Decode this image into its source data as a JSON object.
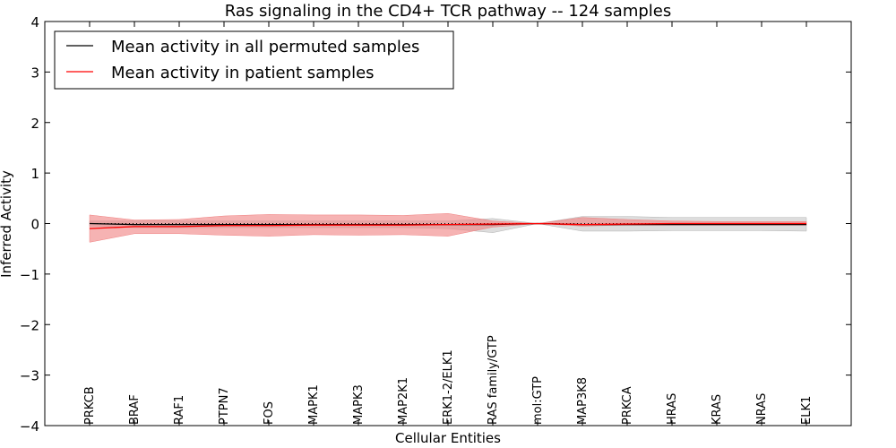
{
  "chart_data": {
    "type": "line",
    "title": "Ras signaling in the CD4+ TCR pathway -- 124 samples",
    "xlabel": "Cellular Entities",
    "ylabel": "Inferred Activity",
    "ylim": [
      -4,
      4
    ],
    "yticks": [
      {
        "value": -4,
        "label": "−4"
      },
      {
        "value": -3,
        "label": "−3"
      },
      {
        "value": -2,
        "label": "−2"
      },
      {
        "value": -1,
        "label": "−1"
      },
      {
        "value": 0,
        "label": "0"
      },
      {
        "value": 1,
        "label": "1"
      },
      {
        "value": 2,
        "label": "2"
      },
      {
        "value": 3,
        "label": "3"
      },
      {
        "value": 4,
        "label": "4"
      }
    ],
    "categories": [
      "PRKCB",
      "BRAF",
      "RAF1",
      "PTPN7",
      "FOS",
      "MAPK1",
      "MAPK3",
      "MAP2K1",
      "ERK1-2/ELK1",
      "RAS family/GTP",
      "mol:GTP",
      "MAP3K8",
      "PRKCA",
      "HRAS",
      "KRAS",
      "NRAS",
      "ELK1"
    ],
    "legend_position": "top-left",
    "zero_line": "dotted",
    "series": [
      {
        "name": "Mean activity in all permuted samples",
        "color": "#000000",
        "band_color": "#b3b3b3",
        "values": [
          0.0,
          -0.02,
          -0.02,
          -0.02,
          -0.02,
          -0.02,
          -0.02,
          -0.02,
          -0.02,
          -0.02,
          0.0,
          -0.02,
          -0.02,
          -0.02,
          -0.02,
          -0.02,
          -0.02
        ],
        "upper": [
          0.05,
          0.05,
          0.05,
          0.05,
          0.05,
          0.05,
          0.05,
          0.05,
          0.05,
          0.1,
          0.0,
          0.14,
          0.14,
          0.12,
          0.12,
          0.12,
          0.12
        ],
        "lower": [
          -0.05,
          -0.08,
          -0.08,
          -0.08,
          -0.08,
          -0.08,
          -0.08,
          -0.08,
          -0.1,
          -0.18,
          0.0,
          -0.15,
          -0.15,
          -0.14,
          -0.14,
          -0.14,
          -0.15
        ]
      },
      {
        "name": "Mean activity in patient samples",
        "color": "#ff0000",
        "band_color": "#f08080",
        "values": [
          -0.1,
          -0.06,
          -0.06,
          -0.04,
          -0.04,
          -0.03,
          -0.03,
          -0.03,
          -0.02,
          -0.01,
          0.0,
          -0.02,
          -0.01,
          0.0,
          0.0,
          0.0,
          0.0
        ],
        "upper": [
          0.17,
          0.07,
          0.08,
          0.15,
          0.18,
          0.17,
          0.17,
          0.16,
          0.2,
          0.05,
          0.0,
          0.12,
          0.08,
          0.05,
          0.04,
          0.04,
          0.04
        ],
        "lower": [
          -0.37,
          -0.2,
          -0.2,
          -0.23,
          -0.25,
          -0.22,
          -0.23,
          -0.22,
          -0.25,
          -0.07,
          0.0,
          -0.05,
          -0.03,
          -0.03,
          -0.03,
          -0.03,
          -0.03
        ]
      }
    ]
  }
}
